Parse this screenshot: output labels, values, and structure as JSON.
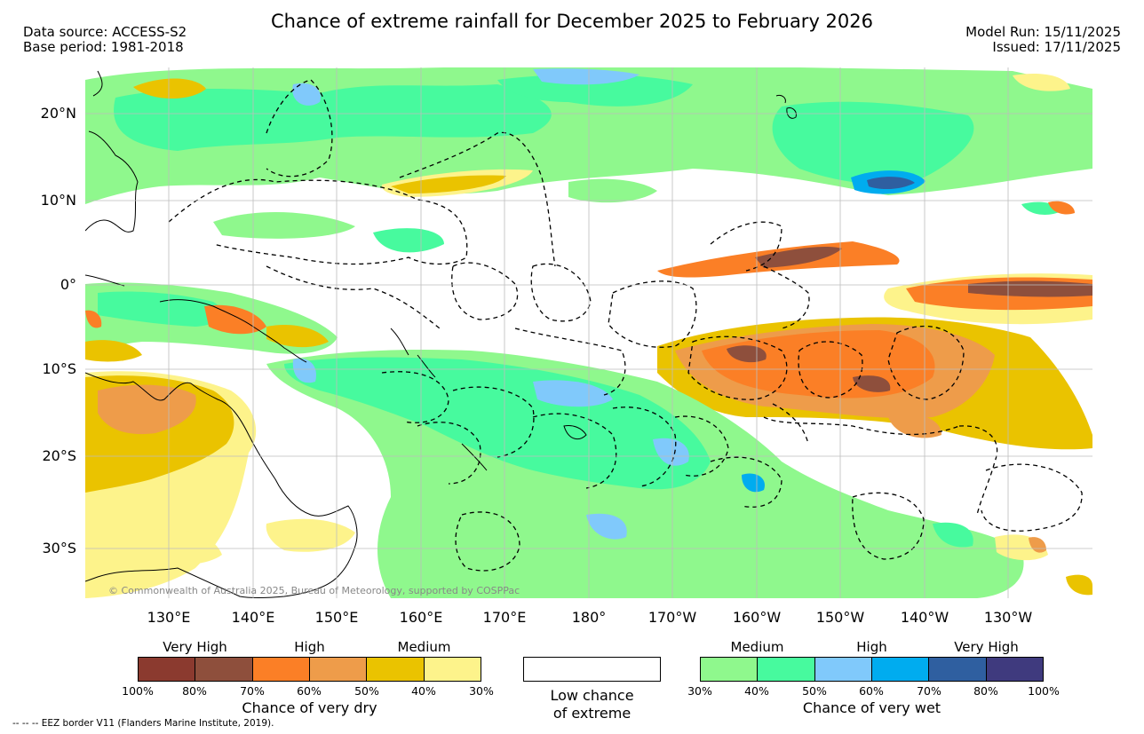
{
  "title": "Chance of extreme rainfall for December 2025 to February 2026",
  "meta_left": {
    "source": "Data source: ACCESS-S2",
    "base": "Base period: 1981-2018"
  },
  "meta_right": {
    "model_run": "Model Run: 15/11/2025",
    "issued": "Issued: 17/11/2025"
  },
  "map": {
    "lat_labels": [
      "20°N",
      "10°N",
      "0°",
      "10°S",
      "20°S",
      "30°S"
    ],
    "lon_labels": [
      "130°E",
      "140°E",
      "150°E",
      "160°E",
      "170°E",
      "180°",
      "170°W",
      "160°W",
      "150°W",
      "140°W",
      "130°W"
    ],
    "copyright": "© Commonwealth of Australia 2025, Bureau of Meteorology, supported by COSPPac"
  },
  "legend_dry": {
    "headings": [
      "Very High",
      "High",
      "Medium"
    ],
    "colors": [
      "#8b3a2f",
      "#8e4f3c",
      "#fb7f26",
      "#ee9c4a",
      "#eac300",
      "#fdf38b"
    ],
    "ticks": [
      "100%",
      "80%",
      "70%",
      "60%",
      "50%",
      "40%",
      "30%"
    ],
    "caption": "Chance of very dry"
  },
  "legend_low": {
    "caption_line1": "Low chance",
    "caption_line2": "of extreme"
  },
  "legend_wet": {
    "headings": [
      "Medium",
      "High",
      "Very High"
    ],
    "colors": [
      "#8ff88d",
      "#47fa9e",
      "#80c9fb",
      "#00acef",
      "#2f5fa0",
      "#3f3a7e"
    ],
    "ticks": [
      "30%",
      "40%",
      "50%",
      "60%",
      "70%",
      "80%",
      "100%"
    ],
    "caption": "Chance of very wet"
  },
  "footer": "--  --  -- EEZ border V11 (Flanders Marine Institute, 2019)."
}
